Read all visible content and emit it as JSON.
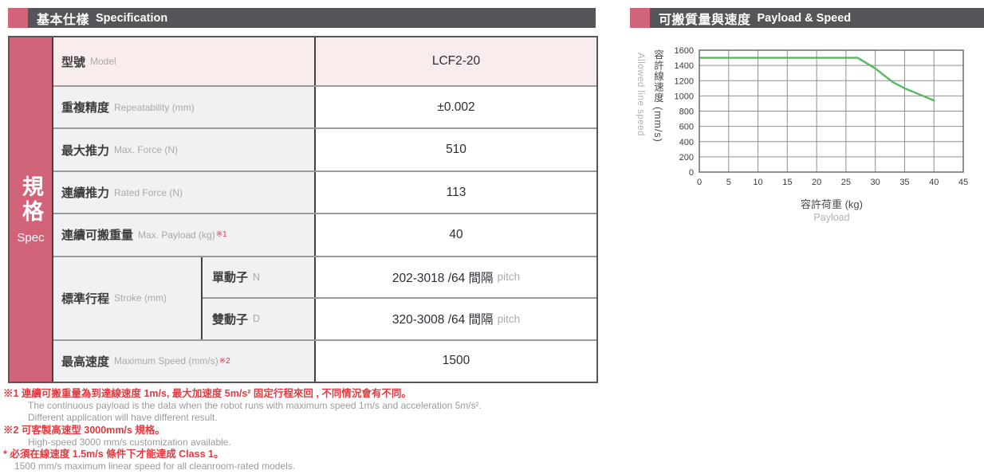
{
  "colors": {
    "accent_rose": "#d2647a",
    "header_bar": "#545559",
    "footnote_red": "#e23b41",
    "line_green": "#55b961",
    "model_row_bg": "#f9ecec",
    "label_col_bg": "#f0f1f3"
  },
  "left": {
    "header": {
      "title_zh": "基本仕樣",
      "title_en": "Specification"
    },
    "band": {
      "zh": "規格",
      "en": "Spec"
    },
    "table": {
      "rows": [
        {
          "zh": "型號",
          "en": "Model",
          "note": "",
          "value": "LCF2-20"
        },
        {
          "zh": "重複精度",
          "en": "Repeatability (mm)",
          "note": "",
          "value": "±0.002"
        },
        {
          "zh": "最大推力",
          "en": "Max. Force (N)",
          "note": "",
          "value": "510"
        },
        {
          "zh": "連續推力",
          "en": "Rated Force (N)",
          "note": "",
          "value": "113"
        },
        {
          "zh": "連續可搬重量",
          "en": "Max. Payload (kg)",
          "note": "※1",
          "value": "40"
        }
      ],
      "stroke": {
        "zh": "標準行程",
        "en": "Stroke (mm)",
        "subs": [
          {
            "zh": "單動子",
            "code": "N",
            "value": "202-3018 /64 間隔",
            "suffix": "pitch"
          },
          {
            "zh": "雙動子",
            "code": "D",
            "value": "320-3008 /64 間隔",
            "suffix": "pitch"
          }
        ]
      },
      "last": {
        "zh": "最高速度",
        "en": "Maximum Speed (mm/s)",
        "note": "※2",
        "value": "1500"
      }
    }
  },
  "footnotes": [
    {
      "text": "※1 連續可搬重量為到達線速度 1m/s, 最大加速度 5m/s² 固定行程來回 , 不同情況會有不同。",
      "style": "red",
      "indent": 0
    },
    {
      "text": "The continuous payload is the data when the robot runs with maximum speed 1m/s and acceleration 5m/s².",
      "style": "gray",
      "indent": 1
    },
    {
      "text": "Different application will have different result.",
      "style": "gray",
      "indent": 1
    },
    {
      "text": "※2 可客製高速型 3000mm/s 規格。",
      "style": "red",
      "indent": 0
    },
    {
      "text": "High-speed 3000 mm/s customization available.",
      "style": "gray",
      "indent": 1
    },
    {
      "text": "* 必須在線速度 1.5m/s 條件下才能達成 Class 1。",
      "style": "red",
      "indent": 0
    },
    {
      "text": "1500 mm/s maximum linear speed for all cleanroom-rated models.",
      "style": "gray",
      "indent": 2
    }
  ],
  "chart_header": {
    "title_zh": "可搬質量與速度",
    "title_en": "Payload & Speed"
  },
  "chart_data": {
    "type": "line",
    "title": "可搬質量與速度 Payload & Speed",
    "xlabel_zh": "容許荷重 (kg)",
    "xlabel_en": "Payload",
    "ylabel_zh": "容許線速度 (mm/s)",
    "ylabel_en": "Allowed line speed",
    "xlim": [
      0,
      45
    ],
    "ylim": [
      0,
      1600
    ],
    "xticks": [
      0,
      5,
      10,
      15,
      20,
      25,
      30,
      35,
      40,
      45
    ],
    "yticks": [
      0,
      200,
      400,
      600,
      800,
      1000,
      1200,
      1400,
      1600
    ],
    "grid": true,
    "legend": "none",
    "line_color": "#55b961",
    "series": [
      {
        "name": "allowed-line-speed-vs-payload",
        "points": [
          [
            0,
            1500
          ],
          [
            27,
            1500
          ],
          [
            30,
            1360
          ],
          [
            33,
            1180
          ],
          [
            35,
            1100
          ],
          [
            40,
            940
          ]
        ]
      }
    ]
  }
}
